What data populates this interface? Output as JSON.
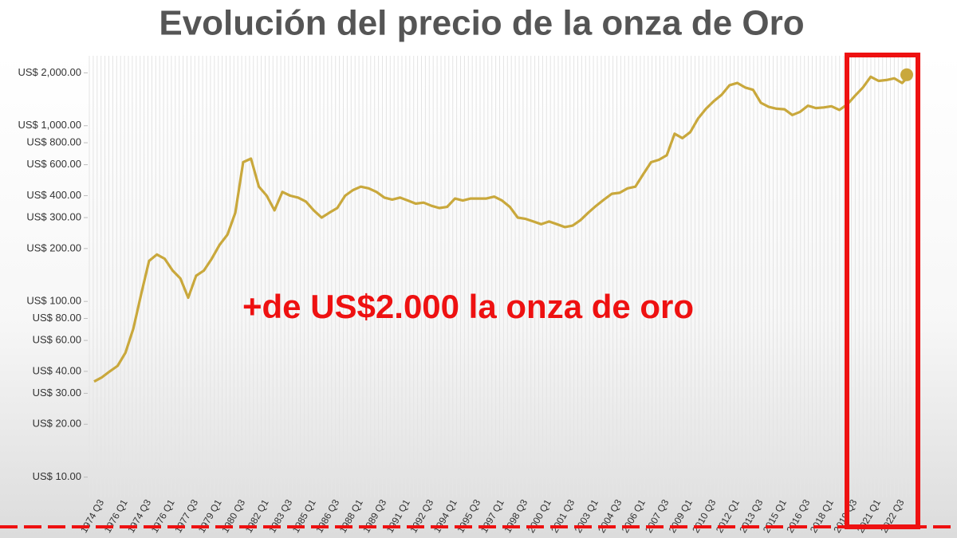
{
  "chart_data": {
    "type": "line",
    "title": "Evolución del precio de la onza de Oro",
    "annotation": "+de US$2.000 la onza de oro",
    "yscale": "log",
    "grid": false,
    "color": "#c9a83c",
    "annotation_color": "#ee1111",
    "ylim": [
      8,
      2500
    ],
    "yticks": [
      {
        "value": 2000,
        "label": "US$ 2,000.00"
      },
      {
        "value": 1000,
        "label": "US$ 1,000.00"
      },
      {
        "value": 800,
        "label": "US$ 800.00"
      },
      {
        "value": 600,
        "label": "US$ 600.00"
      },
      {
        "value": 400,
        "label": "US$ 400.00"
      },
      {
        "value": 300,
        "label": "US$ 300.00"
      },
      {
        "value": 200,
        "label": "US$ 200.00"
      },
      {
        "value": 100,
        "label": "US$ 100.00"
      },
      {
        "value": 80,
        "label": "US$ 80.00"
      },
      {
        "value": 60,
        "label": "US$ 60.00"
      },
      {
        "value": 40,
        "label": "US$ 40.00"
      },
      {
        "value": 30,
        "label": "US$ 30.00"
      },
      {
        "value": 20,
        "label": "US$ 20.00"
      },
      {
        "value": 10,
        "label": "US$ 10.00"
      }
    ],
    "categories": [
      null,
      "1974 Q3",
      null,
      null,
      "1976 Q1",
      null,
      null,
      "1974 Q3",
      null,
      null,
      "1976 Q1",
      null,
      null,
      "1977 Q3",
      null,
      null,
      "1979 Q1",
      null,
      null,
      "1980 Q3",
      null,
      null,
      "1982 Q1",
      null,
      null,
      "1983 Q3",
      null,
      null,
      "1985 Q1",
      null,
      null,
      "1986 Q3",
      null,
      null,
      "1988 Q1",
      null,
      null,
      "1989 Q3",
      null,
      null,
      "1991 Q1",
      null,
      null,
      "1992 Q3",
      null,
      null,
      "1994 Q1",
      null,
      null,
      "1995 Q3",
      null,
      null,
      "1997 Q1",
      null,
      null,
      "1998 Q3",
      null,
      null,
      "2000 Q1",
      null,
      null,
      "2001 Q3",
      null,
      null,
      "2003 Q1",
      null,
      null,
      "2004 Q3",
      null,
      null,
      "2006 Q1",
      null,
      null,
      "2007 Q3",
      null,
      null,
      "2009 Q1",
      null,
      null,
      "2010 Q3",
      null,
      null,
      "2012 Q1",
      null,
      null,
      "2013 Q3",
      null,
      null,
      "2015 Q1",
      null,
      null,
      "2016 Q3",
      null,
      null,
      "2018 Q1",
      null,
      null,
      "2019 Q3",
      null,
      null,
      "2021 Q1",
      null,
      null,
      "2022 Q3",
      null
    ],
    "values": [
      35,
      37,
      40,
      43,
      51,
      70,
      110,
      170,
      185,
      175,
      150,
      135,
      105,
      140,
      150,
      175,
      210,
      240,
      320,
      620,
      650,
      450,
      400,
      330,
      420,
      400,
      390,
      370,
      330,
      300,
      320,
      340,
      400,
      430,
      450,
      440,
      420,
      390,
      380,
      390,
      375,
      360,
      365,
      350,
      340,
      345,
      385,
      375,
      385,
      385,
      385,
      395,
      375,
      345,
      300,
      295,
      285,
      275,
      285,
      275,
      265,
      270,
      290,
      320,
      350,
      380,
      410,
      415,
      440,
      450,
      530,
      620,
      640,
      680,
      900,
      850,
      920,
      1100,
      1250,
      1380,
      1500,
      1700,
      1750,
      1650,
      1600,
      1350,
      1280,
      1250,
      1240,
      1150,
      1200,
      1300,
      1260,
      1270,
      1290,
      1230,
      1320,
      1480,
      1650,
      1900,
      1800,
      1820,
      1860,
      1750,
      1950
    ]
  }
}
